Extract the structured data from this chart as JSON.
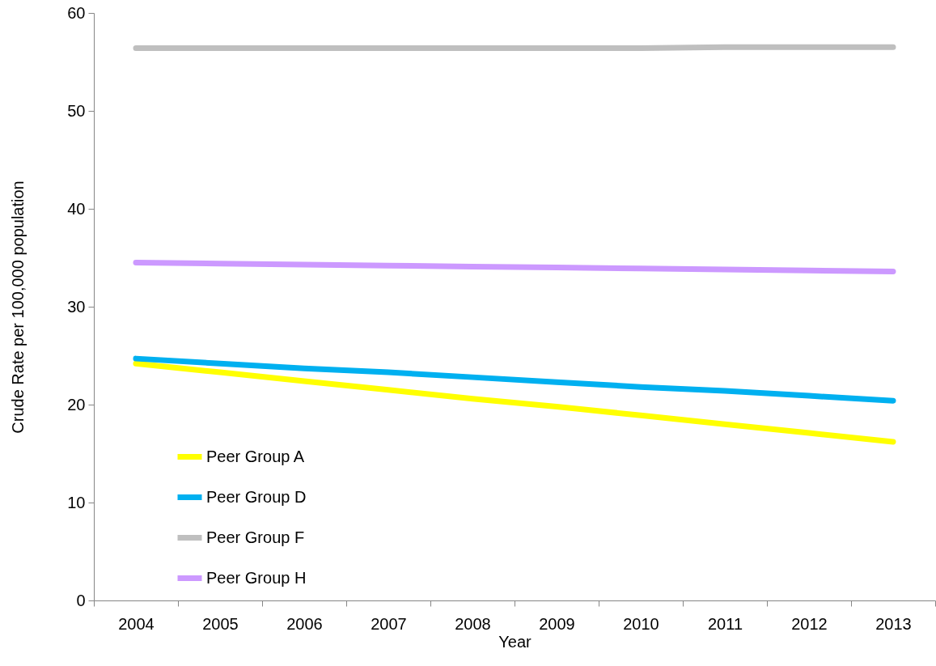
{
  "chart_data": {
    "type": "line",
    "xlabel": "Year",
    "ylabel": "Crude Rate per 100,000 population",
    "categories": [
      "2004",
      "2005",
      "2006",
      "2007",
      "2008",
      "2009",
      "2010",
      "2011",
      "2012",
      "2013"
    ],
    "series": [
      {
        "name": "Peer Group A",
        "color": "#ffff00",
        "values": [
          24.2,
          23.3,
          22.4,
          21.5,
          20.6,
          19.8,
          18.9,
          18.0,
          17.1,
          16.2
        ]
      },
      {
        "name": "Peer Group D",
        "color": "#00b0f0",
        "values": [
          24.7,
          24.2,
          23.7,
          23.3,
          22.8,
          22.3,
          21.8,
          21.4,
          20.9,
          20.4
        ]
      },
      {
        "name": "Peer Group F",
        "color": "#bfbfbf",
        "values": [
          56.4,
          56.4,
          56.4,
          56.4,
          56.4,
          56.4,
          56.4,
          56.5,
          56.5,
          56.5
        ]
      },
      {
        "name": "Peer Group H",
        "color": "#cc99ff",
        "values": [
          34.5,
          34.4,
          34.3,
          34.2,
          34.1,
          34.0,
          33.9,
          33.8,
          33.7,
          33.6
        ]
      }
    ],
    "ylim": [
      0,
      60
    ],
    "yticks": [
      0,
      10,
      20,
      30,
      40,
      50,
      60
    ],
    "grid": false,
    "legend": "bottom left",
    "marker": "none",
    "line_style": "solid"
  }
}
